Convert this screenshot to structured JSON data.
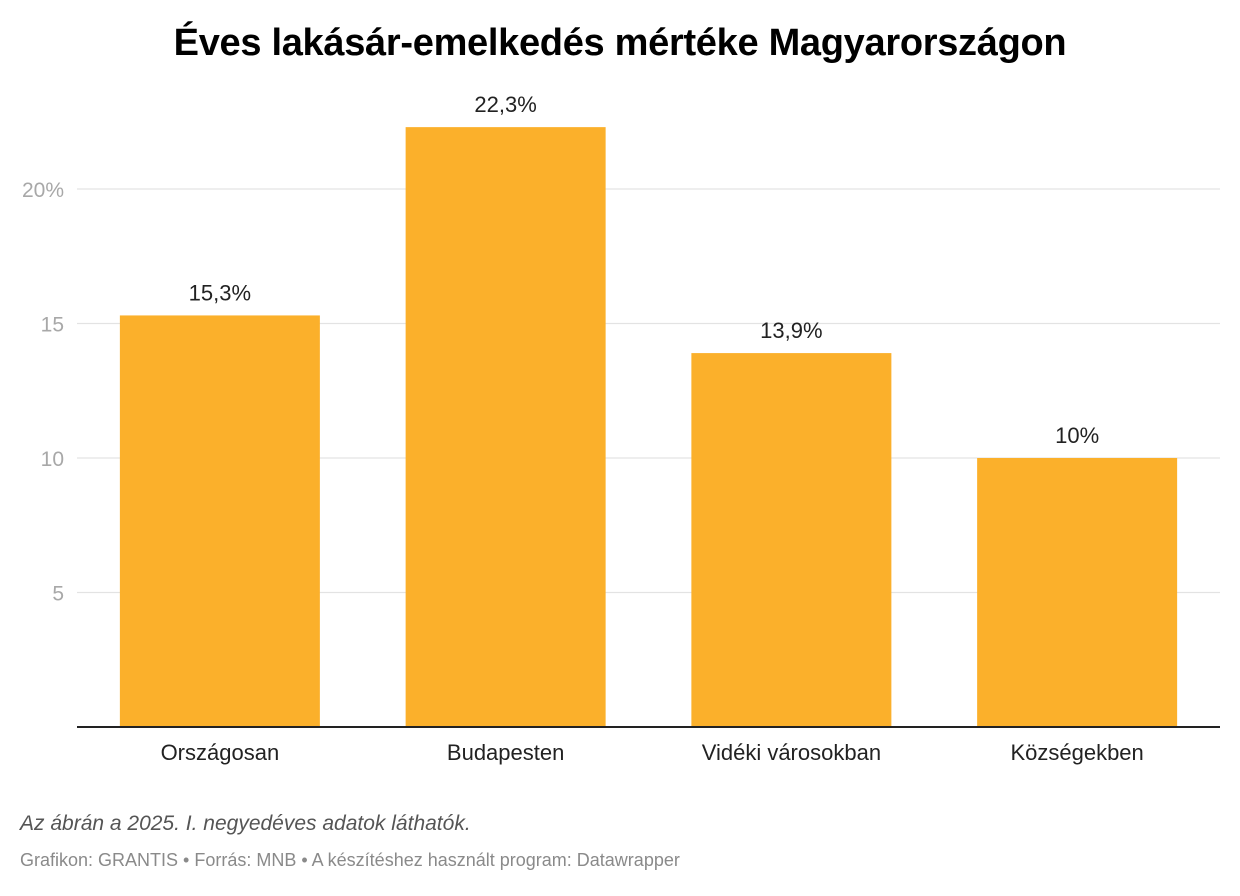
{
  "title": "Éves lakásár-emelkedés mértéke Magyarországon",
  "note": "Az ábrán a 2025. I. negyedéves adatok láthatók.",
  "credits": "Grafikon: GRANTIS • Forrás: MNB • A készítéshez használt program: Datawrapper",
  "colors": {
    "bar": "#FBB02B",
    "grid": "#e3e3e3",
    "axis": "#222222",
    "tick_label": "#a8a8a8",
    "value_label": "#222222",
    "category_label": "#222222"
  },
  "chart_data": {
    "type": "bar",
    "title": "Éves lakásár-emelkedés mértéke Magyarországon",
    "categories": [
      "Országosan",
      "Budapesten",
      "Vidéki városokban",
      "Községekben"
    ],
    "values": [
      15.3,
      22.3,
      13.9,
      10
    ],
    "value_labels": [
      "15,3%",
      "22,3%",
      "13,9%",
      "10%"
    ],
    "yticks": [
      5,
      10,
      15,
      20
    ],
    "ytick_labels": [
      "5",
      "10",
      "15",
      "20%"
    ],
    "ylim": [
      0,
      25
    ],
    "grid": true,
    "xlabel": "",
    "ylabel": ""
  }
}
